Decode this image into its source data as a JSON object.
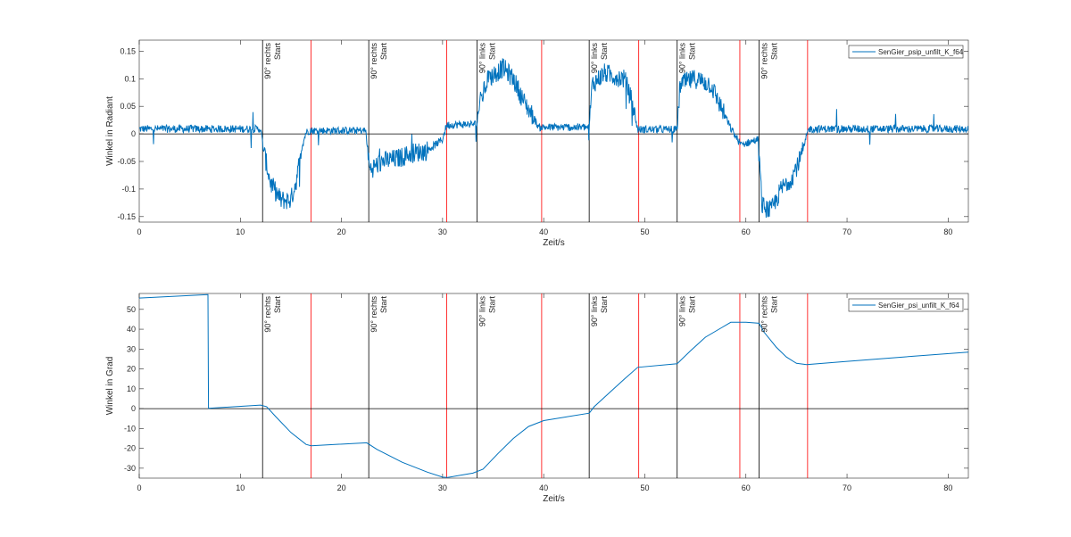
{
  "chart_data": [
    {
      "type": "line",
      "xlabel": "Zeit/s",
      "ylabel": "Winkel in Radiant",
      "xlim": [
        0,
        82
      ],
      "ylim": [
        -0.16,
        0.17
      ],
      "xticks": [
        0,
        10,
        20,
        30,
        40,
        50,
        60,
        70,
        80
      ],
      "xtick_labels": [
        "0",
        "10",
        "20",
        "30",
        "40",
        "50",
        "60",
        "70",
        "80"
      ],
      "yticks": [
        -0.15,
        -0.1,
        -0.05,
        0,
        0.05,
        0.1,
        0.15
      ],
      "ytick_labels": [
        "-0.15",
        "-0.1",
        "-0.05",
        "0",
        "0.05",
        "0.1",
        "0.15"
      ],
      "legend": "top-right",
      "grid": false,
      "series": [
        {
          "name": "SenGier_psip_unfilt_K_f64",
          "color": "#0072BD",
          "noise": 0.007,
          "x": [
            0,
            12.0,
            12.3,
            13.0,
            14.0,
            15.0,
            15.6,
            16.0,
            16.5,
            16.9,
            22.4,
            22.8,
            24.0,
            25.5,
            27.0,
            28.5,
            30.0,
            30.4,
            33.4,
            33.6,
            34.5,
            36.0,
            37.0,
            38.0,
            39.0,
            39.5,
            44.5,
            44.8,
            46.0,
            47.0,
            48.0,
            48.7,
            49.3,
            53.2,
            53.5,
            55.0,
            56.5,
            57.5,
            58.5,
            59.5,
            61.2,
            61.6,
            62.5,
            63.5,
            64.5,
            65.5,
            66.2,
            82
          ],
          "y": [
            0.009,
            0.009,
            -0.03,
            -0.09,
            -0.12,
            -0.12,
            -0.08,
            -0.03,
            0.003,
            0.006,
            0.006,
            -0.065,
            -0.05,
            -0.045,
            -0.035,
            -0.03,
            -0.01,
            0.016,
            0.018,
            0.05,
            0.1,
            0.12,
            0.1,
            0.06,
            0.03,
            0.012,
            0.012,
            0.09,
            0.11,
            0.105,
            0.1,
            0.06,
            0.008,
            0.008,
            0.09,
            0.1,
            0.09,
            0.05,
            0.01,
            -0.02,
            -0.01,
            -0.13,
            -0.14,
            -0.1,
            -0.08,
            -0.04,
            0.009,
            0.009
          ]
        }
      ],
      "vlines": [
        {
          "x": 12.2,
          "color": "#000000",
          "label": "90° rechts\nStart"
        },
        {
          "x": 17.0,
          "color": "#FF0000"
        },
        {
          "x": 22.7,
          "color": "#000000",
          "label": "90° rechts\nStart"
        },
        {
          "x": 30.4,
          "color": "#FF0000"
        },
        {
          "x": 33.4,
          "color": "#000000",
          "label": "90° links\nStart"
        },
        {
          "x": 39.8,
          "color": "#FF0000"
        },
        {
          "x": 44.5,
          "color": "#000000",
          "label": "90° links\nStart"
        },
        {
          "x": 49.4,
          "color": "#FF0000"
        },
        {
          "x": 53.2,
          "color": "#000000",
          "label": "90° links\nStart"
        },
        {
          "x": 59.4,
          "color": "#FF0000"
        },
        {
          "x": 61.3,
          "color": "#000000",
          "label": "90° rechts\nStart"
        },
        {
          "x": 66.1,
          "color": "#FF0000"
        }
      ],
      "hline": 0
    },
    {
      "type": "line",
      "xlabel": "Zeit/s",
      "ylabel": "Winkel in Grad",
      "xlim": [
        0,
        82
      ],
      "ylim": [
        -35,
        58
      ],
      "xticks": [
        0,
        10,
        20,
        30,
        40,
        50,
        60,
        70,
        80
      ],
      "xtick_labels": [
        "0",
        "10",
        "20",
        "30",
        "40",
        "50",
        "60",
        "70",
        "80"
      ],
      "yticks": [
        -30,
        -20,
        -10,
        0,
        10,
        20,
        30,
        40,
        50
      ],
      "ytick_labels": [
        "-30",
        "-20",
        "-10",
        "0",
        "10",
        "20",
        "30",
        "40",
        "50"
      ],
      "legend": "top-right",
      "grid": false,
      "series": [
        {
          "name": "SenGier_psi_unfilt_K_f64",
          "color": "#0072BD",
          "noise": 0,
          "x": [
            0,
            6.8,
            6.85,
            12.0,
            12.6,
            13.5,
            15.0,
            16.5,
            17.0,
            22.5,
            23.5,
            26.0,
            28.5,
            30.0,
            30.5,
            33.0,
            34.0,
            35.5,
            37.0,
            38.5,
            40.0,
            44.5,
            45.0,
            46.5,
            48.0,
            49.3,
            53.2,
            54.5,
            56.0,
            57.5,
            58.5,
            60.0,
            61.3,
            61.8,
            63.0,
            64.0,
            65.0,
            66.0,
            70.0,
            75.0,
            82.0
          ],
          "y": [
            55.7,
            57.4,
            0.2,
            1.8,
            1.0,
            -4.0,
            -12.0,
            -18.0,
            -18.7,
            -17.2,
            -20.5,
            -27.0,
            -32.0,
            -34.5,
            -34.7,
            -32.5,
            -30.5,
            -22.5,
            -15.0,
            -9.0,
            -6.0,
            -2.3,
            1.0,
            8.0,
            15.0,
            20.8,
            22.6,
            29.0,
            36.0,
            40.5,
            43.5,
            43.5,
            43.0,
            38.5,
            31.0,
            26.0,
            22.8,
            22.2,
            23.8,
            25.8,
            28.5
          ]
        }
      ],
      "vlines": [
        {
          "x": 12.2,
          "color": "#000000",
          "label": "90° rechts\nStart"
        },
        {
          "x": 17.0,
          "color": "#FF0000"
        },
        {
          "x": 22.7,
          "color": "#000000",
          "label": "90° rechts\nStart"
        },
        {
          "x": 30.4,
          "color": "#FF0000"
        },
        {
          "x": 33.4,
          "color": "#000000",
          "label": "90° links\nStart"
        },
        {
          "x": 39.8,
          "color": "#FF0000"
        },
        {
          "x": 44.5,
          "color": "#000000",
          "label": "90° links\nStart"
        },
        {
          "x": 49.4,
          "color": "#FF0000"
        },
        {
          "x": 53.2,
          "color": "#000000",
          "label": "90° links\nStart"
        },
        {
          "x": 59.4,
          "color": "#FF0000"
        },
        {
          "x": 61.3,
          "color": "#000000",
          "label": "90° rechts\nStart"
        },
        {
          "x": 66.1,
          "color": "#FF0000"
        }
      ],
      "hline": 0
    }
  ]
}
